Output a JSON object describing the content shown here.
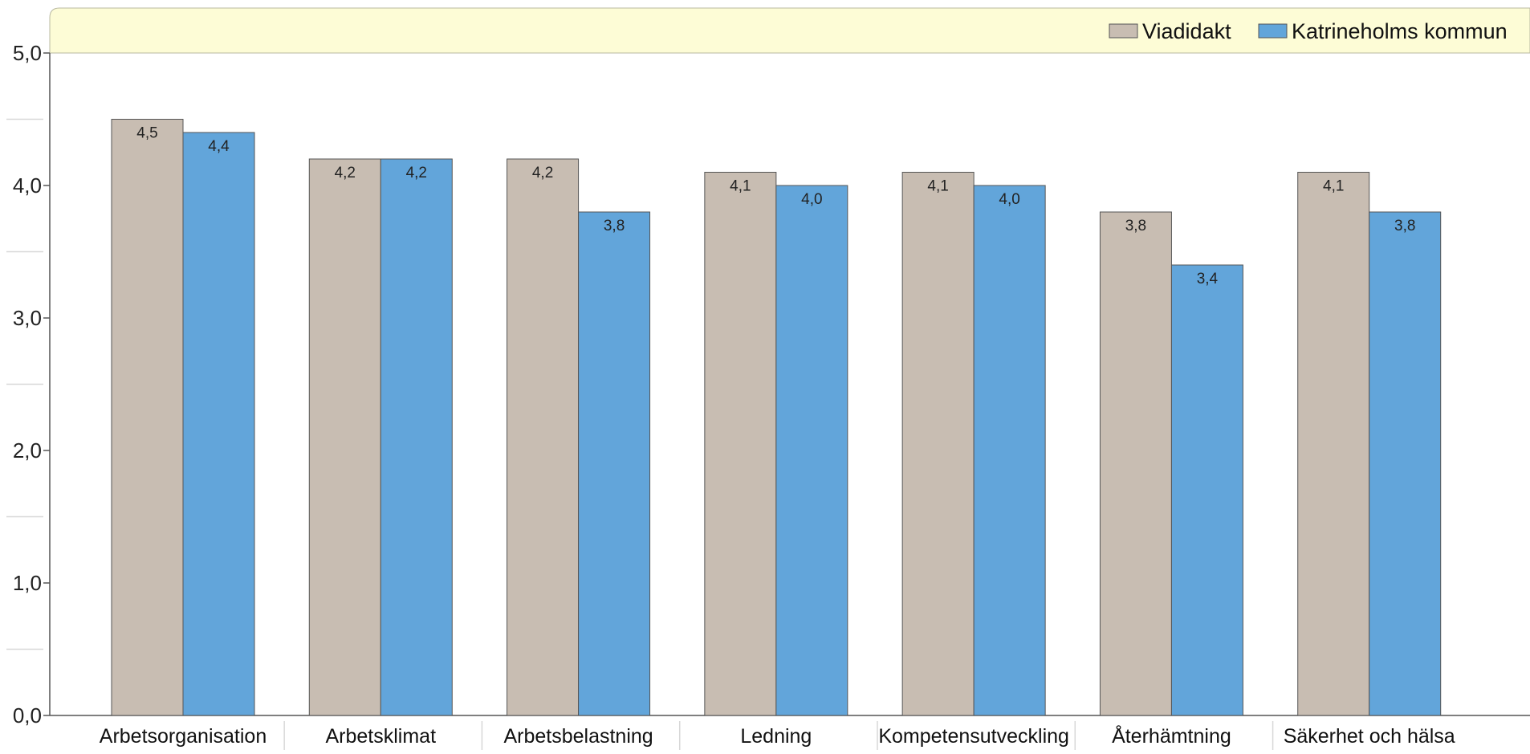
{
  "colors": {
    "viadidakt": "#c8bdb2",
    "katrineholm": "#62a5da",
    "legend_band": "#fdfcd6",
    "axis": "#555555",
    "bar_stroke": "#555555"
  },
  "chart_data": {
    "type": "bar",
    "title": "",
    "xlabel": "",
    "ylabel": "",
    "ylim": [
      0,
      5
    ],
    "yticks": [
      "0,0",
      "1,0",
      "2,0",
      "3,0",
      "4,0",
      "5,0"
    ],
    "grid": false,
    "legend_position": "top-right",
    "categories": [
      "Arbetsorganisation",
      "Arbetsklimat",
      "Arbetsbelastning",
      "Ledning",
      "Kompetensutveckling",
      "Återhämtning",
      "Säkerhet och hälsa"
    ],
    "series": [
      {
        "name": "Viadidakt",
        "color": "#c8bdb2",
        "values": [
          4.5,
          4.2,
          4.2,
          4.1,
          4.1,
          3.8,
          4.1
        ],
        "labels": [
          "4,5",
          "4,2",
          "4,2",
          "4,1",
          "4,1",
          "3,8",
          "4,1"
        ]
      },
      {
        "name": "Katrineholms kommun",
        "color": "#62a5da",
        "values": [
          4.4,
          4.2,
          3.8,
          4.0,
          4.0,
          3.4,
          3.8
        ],
        "labels": [
          "4,4",
          "4,2",
          "3,8",
          "4,0",
          "4,0",
          "3,4",
          "3,8"
        ]
      }
    ]
  }
}
